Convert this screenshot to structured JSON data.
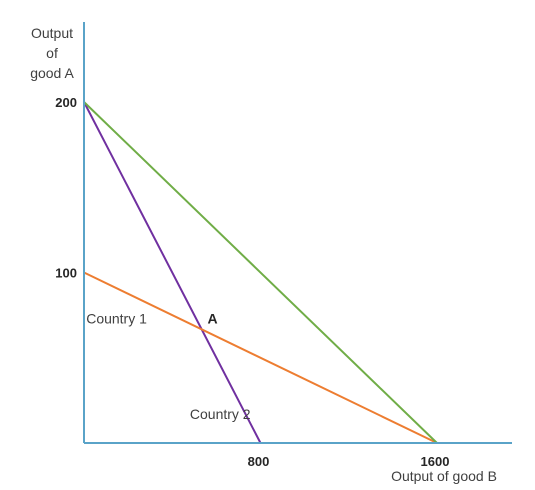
{
  "chart_data": {
    "type": "line",
    "ylabel_lines": [
      "Output",
      "of",
      "good A"
    ],
    "xlabel": "Output of good B",
    "x_ticks": [
      {
        "value": 800,
        "label": "800"
      },
      {
        "value": 1600,
        "label": "1600"
      }
    ],
    "y_ticks": [
      {
        "value": 100,
        "label": "100"
      },
      {
        "value": 200,
        "label": "200"
      }
    ],
    "xlim": [
      0,
      1940
    ],
    "ylim": [
      0,
      200
    ],
    "series": [
      {
        "color": "#7030a0",
        "points": [
          [
            0,
            200
          ],
          [
            800,
            0
          ]
        ]
      },
      {
        "color": "#ed7d31",
        "points": [
          [
            0,
            100
          ],
          [
            1600,
            0
          ]
        ]
      },
      {
        "color": "#70ad47",
        "points": [
          [
            0,
            200
          ],
          [
            1600,
            0
          ]
        ]
      }
    ],
    "annotations": [
      {
        "text": "Country 1",
        "x": 10,
        "y": 70,
        "bold": false
      },
      {
        "text": "Country 2",
        "x": 480,
        "y": 14,
        "bold": false
      },
      {
        "text": "A",
        "x": 560,
        "y": 70,
        "bold": true
      }
    ],
    "axis_color": "#5aa3c8"
  }
}
